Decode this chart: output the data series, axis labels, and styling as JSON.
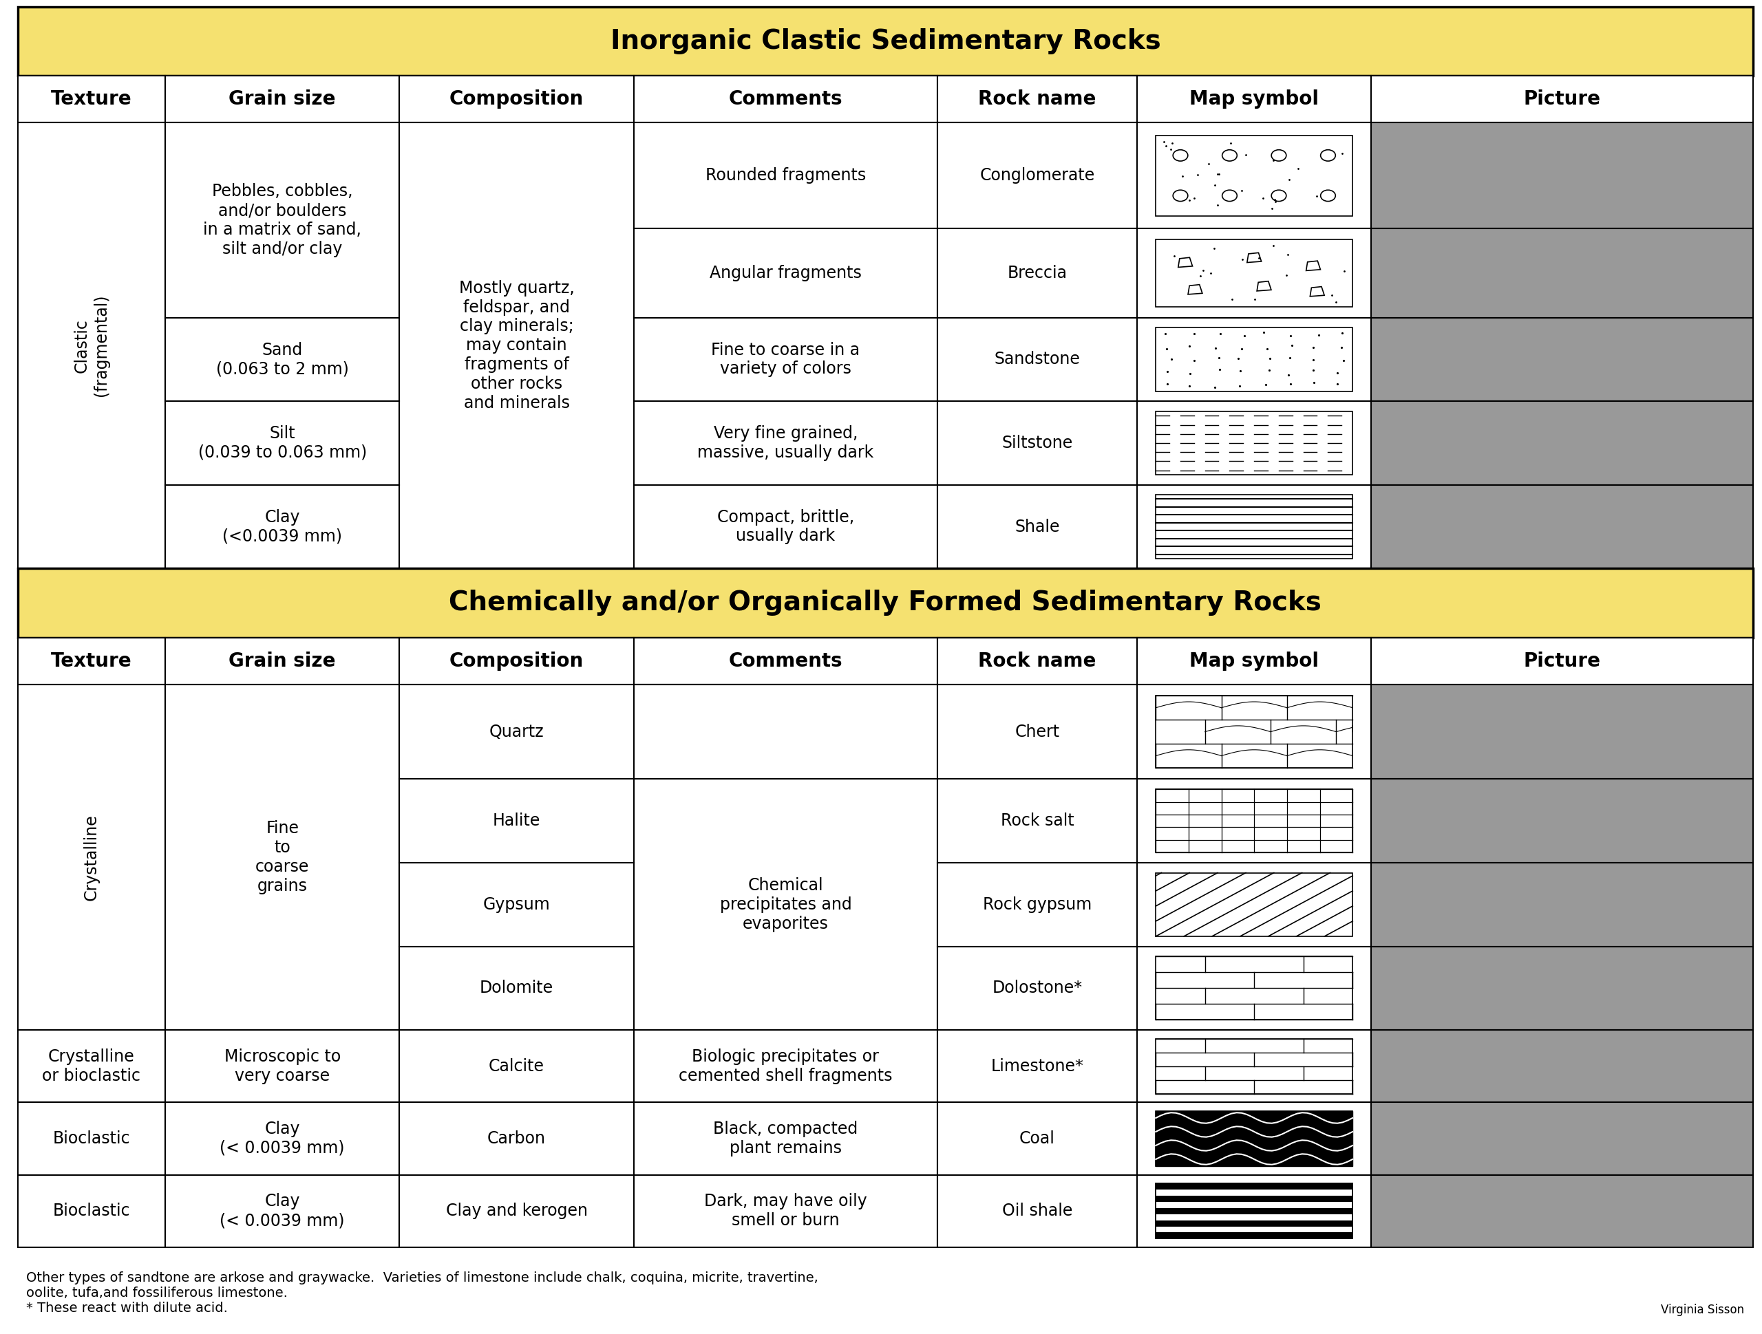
{
  "title1": "Inorganic Clastic Sedimentary Rocks",
  "title2": "Chemically and/or Organically Formed Sedimentary Rocks",
  "header_color": "#F5E170",
  "border_color": "#000000",
  "title_fontsize": 28,
  "header_fontsize": 20,
  "cell_fontsize": 17,
  "footnote_fontsize": 14,
  "credit_fontsize": 12,
  "columns": [
    "Texture",
    "Grain size",
    "Composition",
    "Comments",
    "Rock name",
    "Map symbol",
    "Picture"
  ],
  "footnote": "Other types of sandtone are arkose and graywacke.  Varieties of limestone include chalk, coquina, micrite, travertine,\noolite, tufa,and fossiliferous limestone.\n* These react with dilute acid.",
  "credit": "Virginia Sisson"
}
